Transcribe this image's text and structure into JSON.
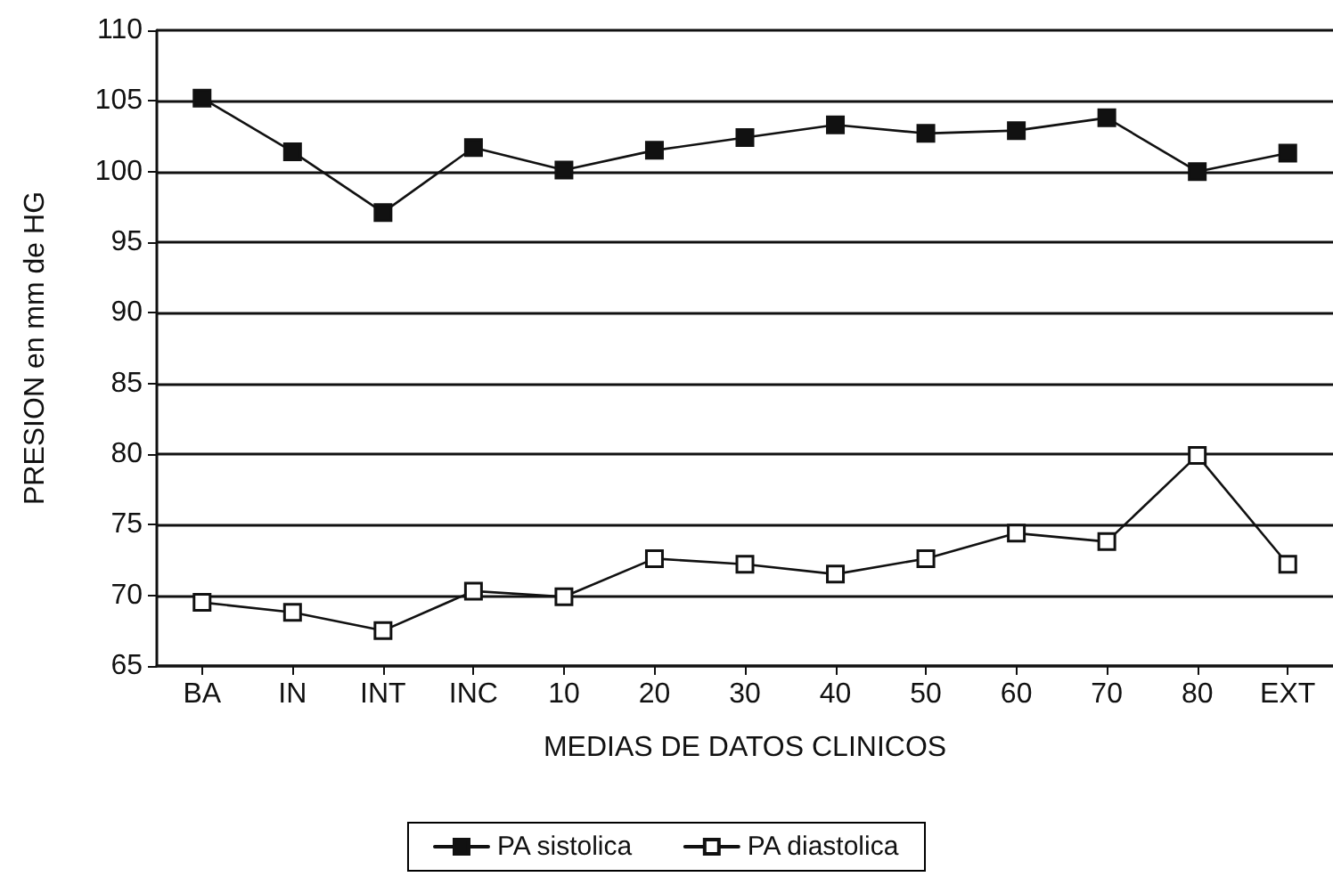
{
  "chart_data": {
    "type": "line",
    "xlabel": "MEDIAS DE DATOS CLINICOS",
    "ylabel": "PRESION en mm de HG",
    "categories": [
      "BA",
      "IN",
      "INT",
      "INC",
      "10",
      "20",
      "30",
      "40",
      "50",
      "60",
      "70",
      "80",
      "EXT"
    ],
    "series": [
      {
        "name": "PA sistolica",
        "color": "#111111",
        "values": [
          105.2,
          101.4,
          97.1,
          101.7,
          100.1,
          101.5,
          102.4,
          103.3,
          102.7,
          102.9,
          103.8,
          100.0,
          101.3
        ]
      },
      {
        "name": "PA diastolica",
        "color": "#111111",
        "values": [
          69.5,
          68.8,
          67.5,
          70.3,
          69.9,
          72.6,
          72.2,
          71.5,
          72.6,
          74.4,
          73.8,
          79.9,
          72.2
        ]
      }
    ],
    "ylim": [
      65,
      110
    ],
    "yticks": [
      65,
      70,
      75,
      80,
      85,
      90,
      95,
      100,
      105,
      110
    ],
    "grid": "y",
    "legend": "bottom",
    "marker": "square",
    "line_style": "solid"
  }
}
